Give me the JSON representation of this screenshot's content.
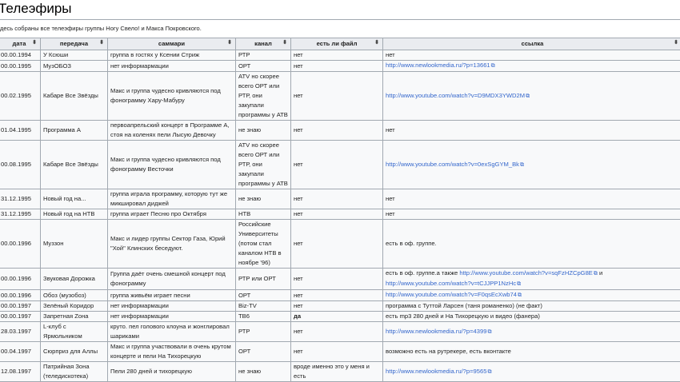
{
  "page": {
    "title": "Телеэфиры",
    "description": "десь собраны все телеэфиры группы Ногу Свело! и Макса Покровского."
  },
  "icons": {
    "sort": "sort-icon",
    "external": "external-link-icon"
  },
  "colors": {
    "link": "#3366cc",
    "header_bg": "#eaecf0",
    "cell_bg": "#f8f9fa",
    "border": "#a2a9b1"
  },
  "table": {
    "headers": [
      "дата",
      "передача",
      "саммари",
      "канал",
      "есть ли файл",
      "ссылка"
    ],
    "rows": [
      {
        "date": "00.00.1994",
        "show": "У Ксюши",
        "summary": "группа в гостях у Ксении Стриж",
        "channel": "РТР",
        "file": "нет",
        "link": [
          {
            "t": "нет"
          }
        ]
      },
      {
        "date": "00.00.1995",
        "show": "МузОБОЗ",
        "summary": "нет информармации",
        "channel": "ОРТ",
        "file": "нет",
        "link": [
          {
            "u": "http://www.newlookmedia.ru/?p=13661"
          }
        ]
      },
      {
        "date": "00.02.1995",
        "show": "Кабаре Все Звёзды",
        "summary": "Макс и группа чудесно кривляются под фонограмму Хару-Мабуру",
        "channel": "ATV но скорее всего ОРТ или РТР, они закупали программы у АТВ",
        "file": "нет",
        "link": [
          {
            "u": "http://www.youtube.com/watch?v=D9MDX3YWD2M"
          }
        ]
      },
      {
        "date": "01.04.1995",
        "show": "Программа А",
        "summary": "первоапрельский концерт в Программе А, стоя на коленях пели Лысую Девочку",
        "channel": "не знаю",
        "file": "нет",
        "link": [
          {
            "t": "нет"
          }
        ]
      },
      {
        "date": "00.08.1995",
        "show": "Кабаре Все Звёзды",
        "summary": "Макс и группа чудесно кривляются под фонограмму Весточки",
        "channel": "ATV но скорее всего ОРТ или РТР, они закупали программы у АТВ",
        "file": "нет",
        "link": [
          {
            "u": "http://www.youtube.com/watch?v=0exSgGYM_Bk"
          }
        ]
      },
      {
        "date": "31.12.1995",
        "show": "Новый год на...",
        "summary": "группа играла программу, которую тут же микшировал диджей",
        "channel": "не знаю",
        "file": "нет",
        "link": [
          {
            "t": "нет"
          }
        ]
      },
      {
        "date": "31.12.1995",
        "show": "Новый год на НТВ",
        "summary": "группа играет Песню про Октября",
        "channel": "НТВ",
        "file": "нет",
        "link": [
          {
            "t": "нет"
          }
        ]
      },
      {
        "date": "00.00.1996",
        "show": "Муззон",
        "summary": "Макс и лидер группы Сектор Газа, Юрий \"Хой\" Клинских беседуют.",
        "channel": "Российские Университеты (потом стал каналом НТВ в ноябре '96)",
        "file": "нет",
        "link": [
          {
            "t": "есть в оф. группе."
          }
        ]
      },
      {
        "date": "00.00.1996",
        "show": "Звуковая Дорожка",
        "summary": "Группа даёт очень смешной концерт под фонограмму",
        "channel": "РТР или ОРТ",
        "file": "нет",
        "link": [
          {
            "t": "есть в оф. группе.а также "
          },
          {
            "u": "http://www.youtube.com/watch?v=sqFzHZCpG8E"
          },
          {
            "t": " и "
          },
          {
            "u": "http://www.youtube.com/watch?v=tCJJPP1NzHc"
          }
        ]
      },
      {
        "date": "00.00.1996",
        "show": "Обоз (музобоз)",
        "summary": "группа живьём играет песни",
        "channel": "ОРТ",
        "file": "нет",
        "link": [
          {
            "u": "http://www.youtube.com/watch?v=F0qsEcXwb74"
          }
        ]
      },
      {
        "date": "00.00.1997",
        "show": "Зелёный Коридор",
        "summary": "нет информармации",
        "channel": "Biz-TV",
        "file": "нет",
        "link": [
          {
            "t": "программа с Туттой Ларсен (таня романенко) (не факт)"
          }
        ]
      },
      {
        "date": "00.00.1997",
        "show": "Запретная Zона",
        "summary": "нет информармации",
        "channel": "ТВ6",
        "file": "да",
        "bold": true,
        "link": [
          {
            "t": "есть mp3 280 дней и На Тихорецкую и видео (фанера)"
          }
        ]
      },
      {
        "date": "28.03.1997",
        "show": "L-клуб с Ярмольником",
        "summary": "круто. пел голового клоуна и жонглировал шариками",
        "channel": "РТР",
        "file": "нет",
        "link": [
          {
            "u": "http://www.newlookmedia.ru/?p=4399"
          }
        ]
      },
      {
        "date": "00.04.1997",
        "show": "Сюрприз для Аллы",
        "summary": "Макс и группа участвовали в очень крутом концерте и пели На Тихорецкую",
        "channel": "ОРТ",
        "file": "нет",
        "link": [
          {
            "t": "возможно есть на рутрекере, есть вконтакте"
          }
        ]
      },
      {
        "date": "12.08.1997",
        "show": "Патрийная Зона (теледискотека)",
        "summary": "Пели 280 дней и тихорецкую",
        "channel": "не знаю",
        "file": "вроде именно это у меня и есть",
        "link": [
          {
            "u": "http://www.newlookmedia.ru/?p=9565"
          }
        ]
      }
    ]
  }
}
